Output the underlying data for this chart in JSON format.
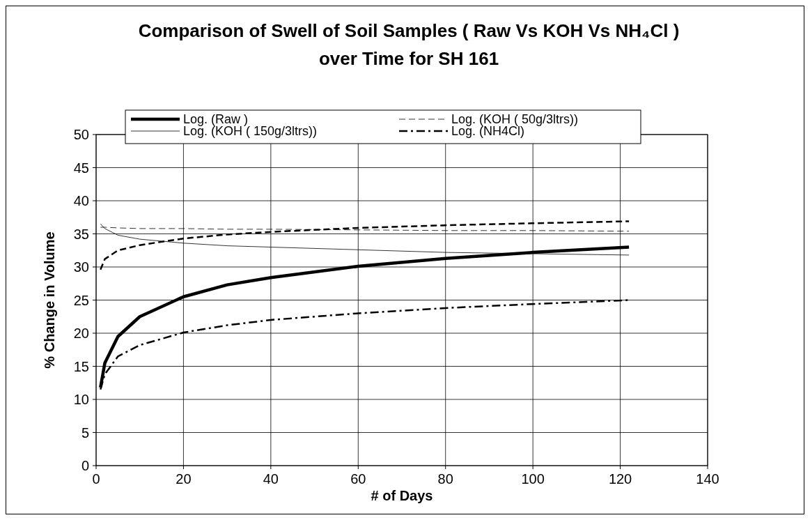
{
  "chart_data": {
    "type": "line",
    "title": "Comparison of Swell of Soil Samples ( Raw Vs KOH Vs NH₄Cl ) over Time for SH 161",
    "xlabel": "# of Days",
    "ylabel": "% Change in Volume",
    "xlim": [
      0,
      140
    ],
    "ylim": [
      0,
      50
    ],
    "xticks": [
      0,
      20,
      40,
      60,
      80,
      100,
      120,
      140
    ],
    "yticks": [
      0,
      5,
      10,
      15,
      20,
      25,
      30,
      35,
      40,
      45,
      50
    ],
    "grid": true,
    "legend": "top",
    "marker": "none",
    "x": [
      1,
      2,
      5,
      10,
      20,
      30,
      40,
      60,
      80,
      100,
      122
    ],
    "series": [
      {
        "name": "Log. (Raw )",
        "color": "#000000",
        "line_style": "solid",
        "values": [
          11.8,
          15.5,
          19.5,
          22.5,
          25.5,
          27.3,
          28.4,
          30.1,
          31.3,
          32.2,
          33.0
        ]
      },
      {
        "name": "Log. (KOH ( 50g/3ltrs))",
        "color": "#000000",
        "line_style": "dashed",
        "values": [
          36.0,
          36.0,
          35.9,
          35.8,
          35.8,
          35.7,
          35.7,
          35.6,
          35.5,
          35.5,
          35.4
        ]
      },
      {
        "name": "Log. (KOH ( 150g/3ltrs))",
        "color": "#000000",
        "line_style": "solid",
        "values": [
          36.5,
          35.8,
          34.8,
          34.2,
          33.6,
          33.2,
          33.0,
          32.6,
          32.2,
          32.0,
          31.8
        ]
      },
      {
        "name": "Log. (NH4Cl)",
        "color": "#000000",
        "line_style": "dashdot",
        "values": [
          11.5,
          13.8,
          16.5,
          18.2,
          20.1,
          21.2,
          22.0,
          23.0,
          23.8,
          24.4,
          25.0
        ]
      },
      {
        "color": "#000000",
        "line_style": "dashed",
        "values": [
          29.6,
          31.2,
          32.5,
          33.3,
          34.3,
          34.9,
          35.3,
          35.9,
          36.3,
          36.6,
          36.9
        ]
      }
    ]
  }
}
